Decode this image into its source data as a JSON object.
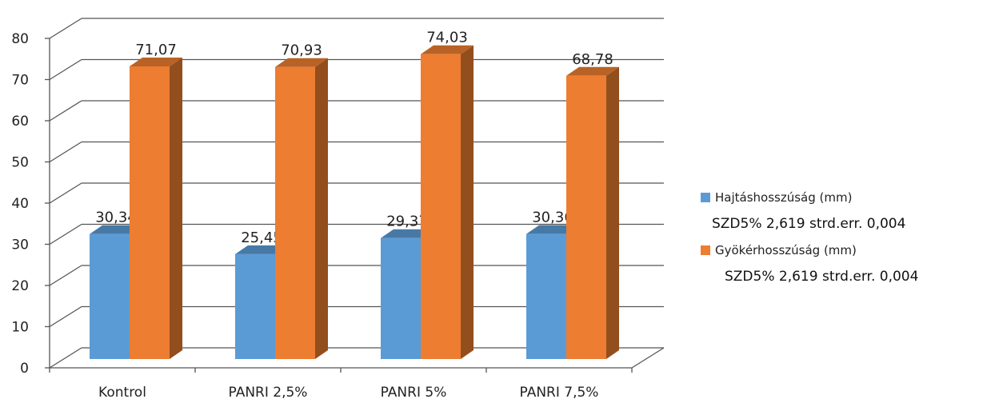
{
  "chart_data": {
    "type": "bar",
    "title": "",
    "xlabel": "",
    "ylabel": "",
    "categories": [
      "Kontrol",
      "PANRI 2,5%",
      "PANRI 5%",
      "PANRI 7,5%"
    ],
    "series": [
      {
        "name": "Hajtáshosszúság (mm)",
        "values": [
          30.34,
          25.45,
          29.37,
          30.36
        ],
        "labels": [
          "30,34",
          "25,45",
          "29,37",
          "30,36"
        ],
        "color": "#5b9bd5"
      },
      {
        "name": "Gyökérhosszúság (mm)",
        "values": [
          71.07,
          70.93,
          74.03,
          68.78
        ],
        "labels": [
          "71,07",
          "70,93",
          "74,03",
          "68,78"
        ],
        "color": "#ed7d31"
      }
    ],
    "ylim": [
      0,
      80
    ],
    "yticks": [
      0,
      10,
      20,
      30,
      40,
      50,
      60,
      70,
      80
    ],
    "grid": true,
    "legend_position": "right"
  },
  "legend_notes": [
    "SZD5% 2,619 strd.err. 0,004",
    "SZD5% 2,619 strd.err. 0,004"
  ]
}
